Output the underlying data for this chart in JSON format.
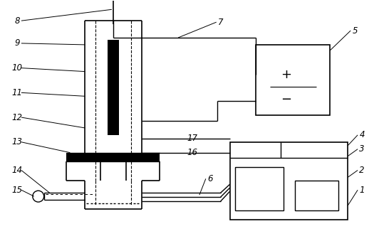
{
  "bg_color": "#ffffff",
  "line_color": "#000000",
  "fig_width": 5.32,
  "fig_height": 3.46,
  "dpi": 100
}
